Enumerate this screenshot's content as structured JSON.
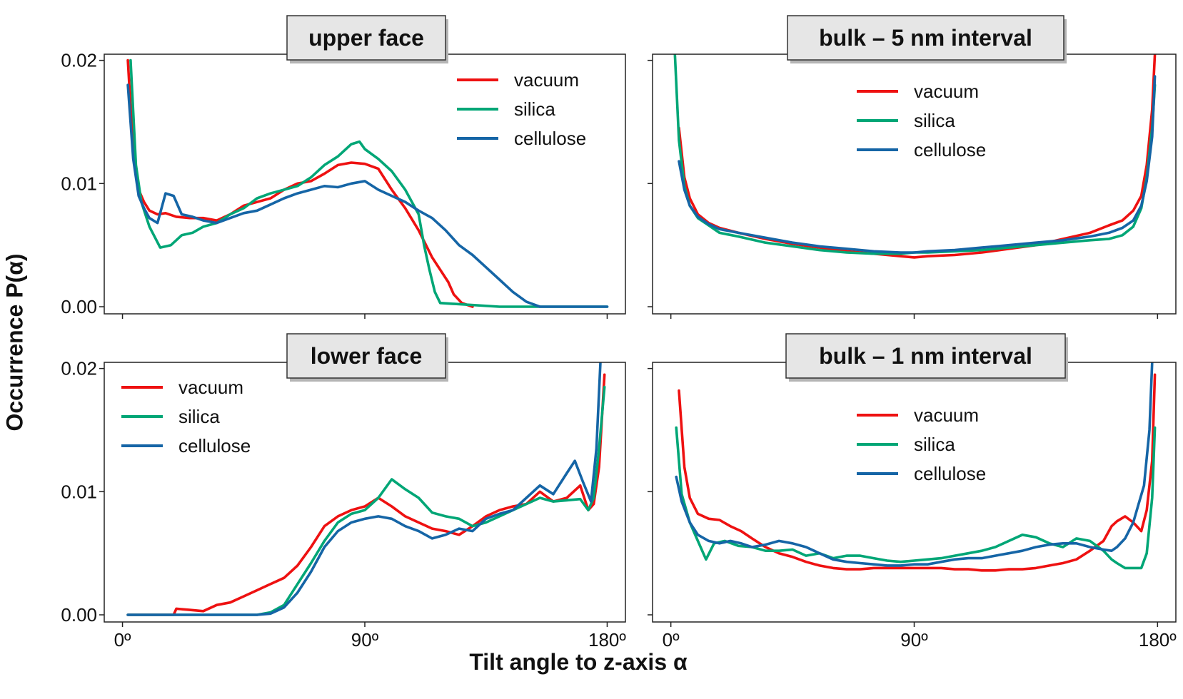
{
  "figure": {
    "ylabel": "Occurrence P(α)",
    "xlabel": "Tilt angle to z-axis α"
  },
  "colors": {
    "vacuum": "#ee1111",
    "silica": "#00a676",
    "cellulose": "#1565a6"
  },
  "chart_data": [
    {
      "type": "line",
      "title": "upper face",
      "xlabel": "",
      "ylabel": "",
      "xlim": [
        0,
        180
      ],
      "ylim": [
        0,
        0.0205
      ],
      "xticks": [
        0,
        90,
        180
      ],
      "xtick_labels": [
        "",
        "",
        ""
      ],
      "yticks": [
        0,
        0.01,
        0.02
      ],
      "ytick_labels": [
        "0.00",
        "0.01",
        "0.02"
      ],
      "legend": "top-right",
      "series": [
        {
          "name": "vacuum",
          "x": [
            2,
            4,
            6,
            8,
            10,
            13,
            16,
            20,
            25,
            30,
            35,
            40,
            45,
            50,
            55,
            60,
            65,
            70,
            75,
            80,
            85,
            90,
            95,
            100,
            105,
            110,
            115,
            118,
            121,
            123,
            126,
            130
          ],
          "y": [
            0.02,
            0.0125,
            0.0095,
            0.0085,
            0.0078,
            0.0075,
            0.0076,
            0.0073,
            0.0072,
            0.0072,
            0.007,
            0.0075,
            0.0082,
            0.0085,
            0.0088,
            0.0095,
            0.01,
            0.0102,
            0.0108,
            0.0115,
            0.0117,
            0.0116,
            0.0112,
            0.0095,
            0.008,
            0.0062,
            0.004,
            0.003,
            0.002,
            0.001,
            0.0003,
            0.0
          ]
        },
        {
          "name": "silica",
          "x": [
            3,
            5,
            7,
            10,
            14,
            18,
            22,
            26,
            30,
            35,
            40,
            45,
            50,
            55,
            60,
            65,
            70,
            75,
            80,
            85,
            88,
            90,
            95,
            100,
            105,
            110,
            112,
            114,
            116,
            118,
            140,
            180
          ],
          "y": [
            0.02,
            0.0115,
            0.0085,
            0.0065,
            0.0048,
            0.005,
            0.0058,
            0.006,
            0.0065,
            0.0068,
            0.0075,
            0.008,
            0.0088,
            0.0092,
            0.0095,
            0.0098,
            0.0105,
            0.0115,
            0.0122,
            0.0132,
            0.0134,
            0.0128,
            0.012,
            0.011,
            0.0095,
            0.0075,
            0.005,
            0.003,
            0.0012,
            0.0003,
            0.0,
            0.0
          ]
        },
        {
          "name": "cellulose",
          "x": [
            2,
            4,
            6,
            8,
            10,
            13,
            16,
            19,
            22,
            26,
            30,
            35,
            40,
            45,
            50,
            55,
            60,
            65,
            70,
            75,
            80,
            85,
            90,
            95,
            100,
            105,
            110,
            115,
            120,
            125,
            130,
            135,
            140,
            145,
            150,
            155,
            180
          ],
          "y": [
            0.018,
            0.012,
            0.009,
            0.008,
            0.0072,
            0.0068,
            0.0092,
            0.009,
            0.0075,
            0.0073,
            0.007,
            0.0068,
            0.0072,
            0.0076,
            0.0078,
            0.0083,
            0.0088,
            0.0092,
            0.0095,
            0.0098,
            0.0097,
            0.01,
            0.0102,
            0.0095,
            0.009,
            0.0085,
            0.0078,
            0.0072,
            0.0062,
            0.005,
            0.0042,
            0.0032,
            0.0022,
            0.0012,
            0.0004,
            0.0,
            0.0
          ]
        }
      ]
    },
    {
      "type": "line",
      "title": "bulk – 5 nm interval",
      "xlabel": "",
      "ylabel": "",
      "xlim": [
        0,
        180
      ],
      "ylim": [
        0,
        0.0205
      ],
      "xticks": [
        0,
        90,
        180
      ],
      "xtick_labels": [
        "",
        "",
        ""
      ],
      "yticks": [
        0,
        0.01,
        0.02
      ],
      "ytick_labels": [
        "",
        "",
        ""
      ],
      "legend": "top-center",
      "series": [
        {
          "name": "vacuum",
          "x": [
            3,
            5,
            7,
            10,
            14,
            18,
            25,
            35,
            45,
            55,
            65,
            75,
            85,
            90,
            95,
            105,
            115,
            125,
            135,
            145,
            155,
            162,
            167,
            171,
            174,
            176,
            178,
            179
          ],
          "y": [
            0.0145,
            0.0105,
            0.0088,
            0.0075,
            0.0068,
            0.0064,
            0.006,
            0.0055,
            0.0051,
            0.0048,
            0.0045,
            0.0043,
            0.0041,
            0.004,
            0.0041,
            0.0042,
            0.0044,
            0.0047,
            0.005,
            0.0055,
            0.006,
            0.0066,
            0.007,
            0.0078,
            0.009,
            0.0115,
            0.016,
            0.0205
          ]
        },
        {
          "name": "silica",
          "x": [
            1.5,
            3,
            5,
            7,
            10,
            14,
            18,
            25,
            35,
            45,
            55,
            65,
            75,
            85,
            90,
            95,
            105,
            115,
            125,
            135,
            145,
            155,
            162,
            167,
            171,
            174,
            176,
            178,
            179
          ],
          "y": [
            0.0205,
            0.0135,
            0.0098,
            0.0082,
            0.0072,
            0.0066,
            0.006,
            0.0057,
            0.0052,
            0.0049,
            0.0046,
            0.0044,
            0.0043,
            0.0043,
            0.0044,
            0.0044,
            0.0045,
            0.0046,
            0.0048,
            0.005,
            0.0052,
            0.0054,
            0.0055,
            0.0058,
            0.0065,
            0.008,
            0.0105,
            0.0145,
            0.018
          ]
        },
        {
          "name": "cellulose",
          "x": [
            3,
            5,
            7,
            10,
            14,
            18,
            25,
            35,
            45,
            55,
            65,
            75,
            85,
            90,
            95,
            105,
            115,
            125,
            135,
            145,
            155,
            162,
            167,
            171,
            174,
            176,
            178,
            179
          ],
          "y": [
            0.0118,
            0.0095,
            0.0082,
            0.0073,
            0.0067,
            0.0063,
            0.006,
            0.0056,
            0.0052,
            0.0049,
            0.0047,
            0.0045,
            0.0044,
            0.0044,
            0.0045,
            0.0046,
            0.0048,
            0.005,
            0.0052,
            0.0054,
            0.0057,
            0.006,
            0.0064,
            0.007,
            0.0082,
            0.0102,
            0.0138,
            0.0187
          ]
        }
      ]
    },
    {
      "type": "line",
      "title": "lower face",
      "xlabel": "",
      "ylabel": "",
      "xlim": [
        0,
        180
      ],
      "ylim": [
        0,
        0.0205
      ],
      "xticks": [
        0,
        90,
        180
      ],
      "xtick_labels": [
        "0º",
        "90º",
        "180º"
      ],
      "yticks": [
        0,
        0.01,
        0.02
      ],
      "ytick_labels": [
        "0.00",
        "0.01",
        "0.02"
      ],
      "legend": "top-left",
      "series": [
        {
          "name": "vacuum",
          "x": [
            2,
            10,
            19,
            20,
            25,
            30,
            35,
            40,
            45,
            50,
            55,
            60,
            65,
            70,
            75,
            80,
            85,
            90,
            95,
            100,
            105,
            110,
            115,
            120,
            125,
            130,
            135,
            140,
            145,
            150,
            155,
            160,
            165,
            170,
            173,
            175,
            177,
            179
          ],
          "y": [
            0.0,
            0.0,
            0.0,
            0.0005,
            0.0004,
            0.0003,
            0.0008,
            0.001,
            0.0015,
            0.002,
            0.0025,
            0.003,
            0.004,
            0.0055,
            0.0072,
            0.008,
            0.0085,
            0.0088,
            0.0095,
            0.0088,
            0.008,
            0.0075,
            0.007,
            0.0068,
            0.0065,
            0.0072,
            0.008,
            0.0085,
            0.0088,
            0.009,
            0.01,
            0.0092,
            0.0095,
            0.0105,
            0.0085,
            0.009,
            0.012,
            0.0195
          ]
        },
        {
          "name": "silica",
          "x": [
            2,
            50,
            55,
            60,
            65,
            70,
            75,
            80,
            85,
            90,
            95,
            100,
            105,
            110,
            115,
            120,
            125,
            130,
            135,
            140,
            145,
            150,
            155,
            160,
            165,
            170,
            173,
            175,
            177,
            179
          ],
          "y": [
            0.0,
            0.0,
            0.0002,
            0.0008,
            0.0025,
            0.0042,
            0.006,
            0.0075,
            0.0082,
            0.0085,
            0.0095,
            0.011,
            0.0102,
            0.0095,
            0.0083,
            0.008,
            0.0078,
            0.0072,
            0.0075,
            0.008,
            0.0085,
            0.009,
            0.0095,
            0.0092,
            0.0093,
            0.0094,
            0.0085,
            0.0095,
            0.0135,
            0.0185
          ]
        },
        {
          "name": "cellulose",
          "x": [
            2,
            50,
            55,
            60,
            65,
            70,
            75,
            80,
            85,
            90,
            95,
            100,
            105,
            110,
            115,
            120,
            125,
            130,
            135,
            140,
            145,
            150,
            155,
            160,
            165,
            168,
            171,
            174,
            176,
            177.5
          ],
          "y": [
            0.0,
            0.0,
            0.0001,
            0.0006,
            0.0018,
            0.0035,
            0.0055,
            0.0068,
            0.0075,
            0.0078,
            0.008,
            0.0078,
            0.0072,
            0.0068,
            0.0062,
            0.0065,
            0.007,
            0.0068,
            0.0078,
            0.0082,
            0.0085,
            0.0095,
            0.0105,
            0.0098,
            0.0115,
            0.0125,
            0.0108,
            0.0092,
            0.0135,
            0.0205
          ]
        }
      ]
    },
    {
      "type": "line",
      "title": "bulk – 1 nm interval",
      "xlabel": "",
      "ylabel": "",
      "xlim": [
        0,
        180
      ],
      "ylim": [
        0,
        0.0205
      ],
      "xticks": [
        0,
        90,
        180
      ],
      "xtick_labels": [
        "0º",
        "90º",
        "180º"
      ],
      "yticks": [
        0,
        0.01,
        0.02
      ],
      "ytick_labels": [
        "",
        "",
        ""
      ],
      "legend": "top-center",
      "series": [
        {
          "name": "vacuum",
          "x": [
            3,
            5,
            7,
            10,
            14,
            18,
            22,
            26,
            30,
            35,
            40,
            45,
            50,
            55,
            60,
            65,
            70,
            75,
            80,
            85,
            90,
            95,
            100,
            105,
            110,
            115,
            120,
            125,
            130,
            135,
            140,
            145,
            150,
            155,
            160,
            163,
            165,
            168,
            171,
            174,
            176,
            178,
            179
          ],
          "y": [
            0.0182,
            0.012,
            0.0095,
            0.0082,
            0.0078,
            0.0077,
            0.0072,
            0.0068,
            0.0062,
            0.0055,
            0.005,
            0.0047,
            0.0043,
            0.004,
            0.0038,
            0.0037,
            0.0037,
            0.0038,
            0.0038,
            0.0038,
            0.0038,
            0.0038,
            0.0038,
            0.0037,
            0.0037,
            0.0036,
            0.0036,
            0.0037,
            0.0037,
            0.0038,
            0.004,
            0.0042,
            0.0045,
            0.0052,
            0.006,
            0.0072,
            0.0076,
            0.008,
            0.0075,
            0.0068,
            0.0085,
            0.0125,
            0.0195
          ]
        },
        {
          "name": "silica",
          "x": [
            2,
            4,
            7,
            10,
            13,
            16,
            20,
            25,
            30,
            35,
            40,
            45,
            50,
            55,
            60,
            65,
            70,
            75,
            80,
            85,
            90,
            95,
            100,
            105,
            110,
            115,
            120,
            125,
            130,
            135,
            140,
            145,
            150,
            155,
            160,
            163,
            165,
            168,
            171,
            174,
            176,
            178,
            179
          ],
          "y": [
            0.0152,
            0.0098,
            0.0075,
            0.006,
            0.0045,
            0.0058,
            0.006,
            0.0056,
            0.0055,
            0.0052,
            0.0052,
            0.0053,
            0.0048,
            0.005,
            0.0046,
            0.0048,
            0.0048,
            0.0046,
            0.0044,
            0.0043,
            0.0044,
            0.0045,
            0.0046,
            0.0048,
            0.005,
            0.0052,
            0.0055,
            0.006,
            0.0065,
            0.0063,
            0.0058,
            0.0055,
            0.0062,
            0.006,
            0.0052,
            0.0045,
            0.0042,
            0.0038,
            0.0038,
            0.0038,
            0.005,
            0.0095,
            0.0152
          ]
        },
        {
          "name": "cellulose",
          "x": [
            2,
            4,
            7,
            10,
            14,
            18,
            22,
            26,
            30,
            35,
            40,
            45,
            50,
            55,
            60,
            65,
            70,
            75,
            80,
            85,
            90,
            95,
            100,
            105,
            110,
            115,
            120,
            125,
            130,
            135,
            140,
            145,
            150,
            155,
            160,
            163,
            165,
            168,
            171,
            173,
            175,
            177,
            178
          ],
          "y": [
            0.0112,
            0.0092,
            0.0075,
            0.0065,
            0.006,
            0.0058,
            0.006,
            0.0058,
            0.0055,
            0.0057,
            0.006,
            0.0058,
            0.0055,
            0.005,
            0.0045,
            0.0043,
            0.0042,
            0.0041,
            0.004,
            0.004,
            0.0041,
            0.0041,
            0.0043,
            0.0045,
            0.0046,
            0.0046,
            0.0048,
            0.005,
            0.0052,
            0.0055,
            0.0057,
            0.0058,
            0.0058,
            0.0055,
            0.0053,
            0.0052,
            0.0055,
            0.0062,
            0.0075,
            0.009,
            0.0105,
            0.015,
            0.0205
          ]
        }
      ]
    }
  ]
}
